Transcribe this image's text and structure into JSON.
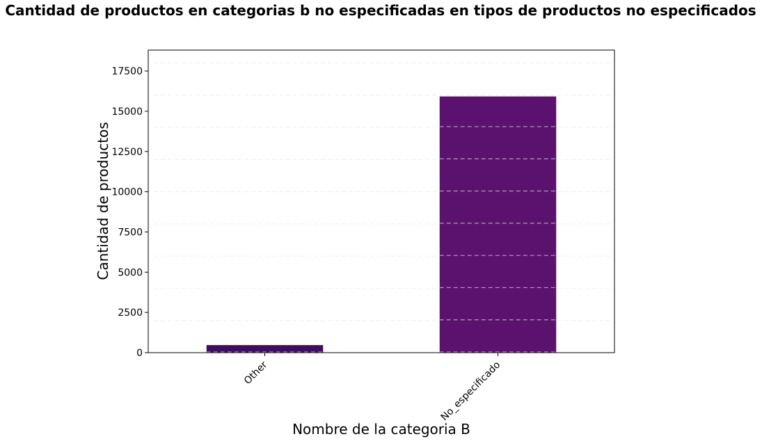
{
  "chart_data": {
    "type": "bar",
    "title": "Cantidad de productos en categorias b no especificadas en tipos de productos no especificados",
    "xlabel": "Nombre de la categoria B",
    "ylabel": "Cantidad de productos",
    "categories": [
      "Other",
      "No_especificado"
    ],
    "values": [
      470,
      15920
    ],
    "ylim": [
      0,
      18800
    ],
    "yticks": [
      0,
      2500,
      5000,
      7500,
      10000,
      12500,
      15000,
      17500
    ],
    "ytick_labels": [
      "0",
      "2500",
      "5000",
      "7500",
      "10000",
      "12500",
      "15000",
      "17500"
    ],
    "grid_values": [
      0,
      2000,
      4000,
      6000,
      8000,
      10000,
      12000,
      14000,
      16000,
      18000
    ],
    "grid": true,
    "bar_colors": [
      "#3f0c5f",
      "#5a126e"
    ],
    "grid_color": "#d8d8d8"
  }
}
